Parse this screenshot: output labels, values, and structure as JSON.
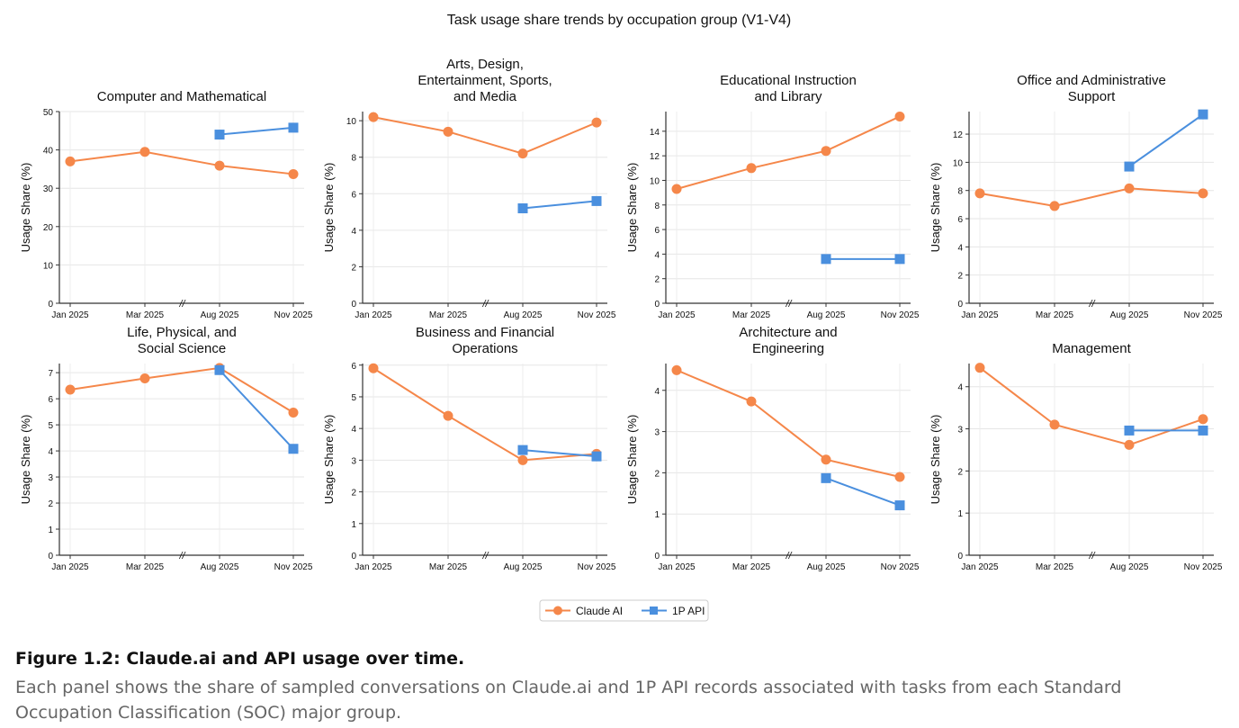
{
  "chart_data": {
    "type": "line",
    "title": "Task usage share trends by occupation group (V1-V4)",
    "x": [
      "Jan 2025",
      "Mar 2025",
      "Aug 2025",
      "Nov 2025"
    ],
    "axis_break_between": [
      "Mar 2025",
      "Aug 2025"
    ],
    "ylabel": "Usage Share (%)",
    "legend": {
      "placement": "bottom-center",
      "entries": [
        {
          "name": "Claude AI",
          "color": "#F5874A",
          "marker": "circle"
        },
        {
          "name": "1P API",
          "color": "#4A8FDE",
          "marker": "square"
        }
      ]
    },
    "grid": true,
    "panels": [
      {
        "title": [
          "Computer and Mathematical"
        ],
        "ylim": [
          0,
          50
        ],
        "yticks": [
          0,
          10,
          20,
          30,
          40,
          50
        ],
        "claude": [
          37.0,
          39.5,
          35.9,
          33.7
        ],
        "api": [
          null,
          null,
          44.0,
          45.8
        ]
      },
      {
        "title": [
          "Arts, Design,",
          "Entertainment, Sports,",
          "and Media"
        ],
        "ylim": [
          0,
          10.5
        ],
        "yticks": [
          0,
          2,
          4,
          6,
          8,
          10
        ],
        "claude": [
          10.2,
          9.4,
          8.2,
          9.9
        ],
        "api": [
          null,
          null,
          5.2,
          5.6
        ]
      },
      {
        "title": [
          "Educational Instruction",
          "and Library"
        ],
        "ylim": [
          0,
          15.6
        ],
        "yticks": [
          0,
          2,
          4,
          6,
          8,
          10,
          12,
          14
        ],
        "claude": [
          9.3,
          11.0,
          12.4,
          15.2
        ],
        "api": [
          null,
          null,
          3.6,
          3.6
        ]
      },
      {
        "title": [
          "Office and Administrative",
          "Support"
        ],
        "ylim": [
          0,
          13.6
        ],
        "yticks": [
          0,
          2,
          4,
          6,
          8,
          10,
          12
        ],
        "claude": [
          7.8,
          6.9,
          8.15,
          7.8
        ],
        "api": [
          null,
          null,
          9.7,
          13.4
        ]
      },
      {
        "title": [
          "Life, Physical, and",
          "Social Science"
        ],
        "ylim": [
          0,
          7.35
        ],
        "yticks": [
          0,
          1,
          2,
          3,
          4,
          5,
          6,
          7
        ],
        "claude": [
          6.35,
          6.78,
          7.18,
          5.47
        ],
        "api": [
          null,
          null,
          7.1,
          4.08
        ]
      },
      {
        "title": [
          "Business and Financial",
          "Operations"
        ],
        "ylim": [
          0,
          6.05
        ],
        "yticks": [
          0,
          1,
          2,
          3,
          4,
          5,
          6
        ],
        "claude": [
          5.9,
          4.4,
          3.0,
          3.2
        ],
        "api": [
          null,
          null,
          3.32,
          3.12
        ]
      },
      {
        "title": [
          "Architecture and",
          "Engineering"
        ],
        "ylim": [
          0,
          4.65
        ],
        "yticks": [
          0,
          1,
          2,
          3,
          4
        ],
        "claude": [
          4.49,
          3.73,
          2.32,
          1.9
        ],
        "api": [
          null,
          null,
          1.87,
          1.21
        ]
      },
      {
        "title": [
          "Management"
        ],
        "ylim": [
          0,
          4.55
        ],
        "yticks": [
          0,
          1,
          2,
          3,
          4
        ],
        "claude": [
          4.45,
          3.1,
          2.62,
          3.23
        ],
        "api": [
          null,
          null,
          2.96,
          2.96
        ]
      }
    ]
  },
  "caption": {
    "title": "Figure 1.2: Claude.ai and API usage over time.",
    "description": "Each panel shows the share of sampled conversations on Claude.ai and 1P API records associated with tasks from each Standard Occupation Classification (SOC) major group."
  }
}
